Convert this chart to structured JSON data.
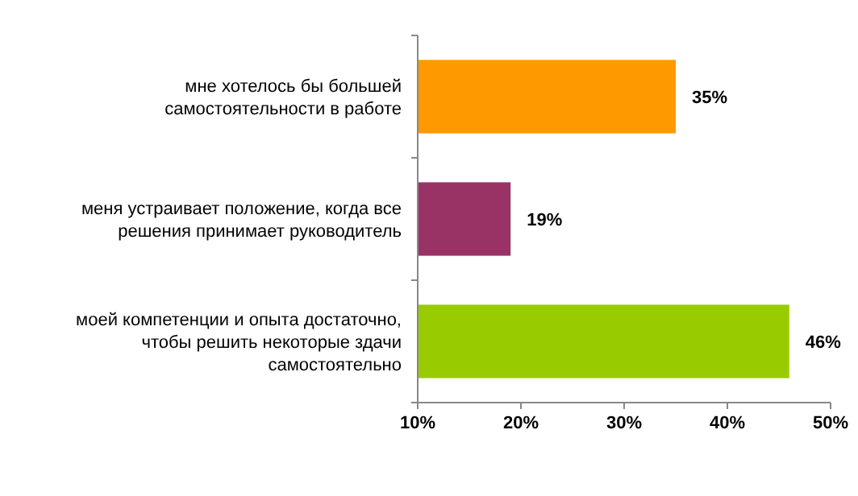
{
  "chart_data": {
    "type": "bar",
    "orientation": "horizontal",
    "categories": [
      "мне хотелось бы большей\nсамостоятельности в работе",
      "меня устраивает положение, когда все\nрешения принимает руководитель",
      "моей компетенции и опыта достаточно,\nчтобы решить некоторые здачи\nсамостоятельно"
    ],
    "values": [
      35,
      19,
      46
    ],
    "colors": [
      "#ff9900",
      "#993366",
      "#99cc00"
    ],
    "xlim": [
      10,
      50
    ],
    "xticks": [
      {
        "value": 10,
        "label": "10%"
      },
      {
        "value": 20,
        "label": "20%"
      },
      {
        "value": 30,
        "label": "30%"
      },
      {
        "value": 40,
        "label": "40%"
      },
      {
        "value": 50,
        "label": "50%"
      }
    ],
    "value_labels": [
      "35%",
      "19%",
      "46%"
    ],
    "grid": false
  }
}
